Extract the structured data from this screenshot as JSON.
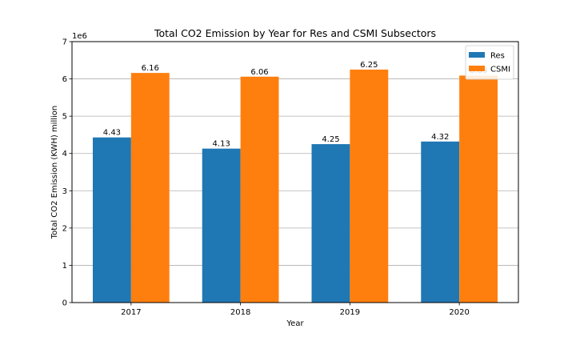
{
  "chart_data": {
    "type": "bar",
    "title": "Total CO2 Emission by Year for Res and CSMI Subsectors",
    "xlabel": "Year",
    "ylabel": "Total CO2 Emission (KWH) million",
    "y_offset_label": "1e6",
    "categories": [
      "2017",
      "2018",
      "2019",
      "2020"
    ],
    "ylim": [
      0,
      7
    ],
    "yticks": [
      0,
      1,
      2,
      3,
      4,
      5,
      6,
      7
    ],
    "grid": "horizontal",
    "legend_position": "top-right",
    "series": [
      {
        "name": "Res",
        "color": "#1f77b4",
        "values": [
          4.43,
          4.13,
          4.25,
          4.32
        ],
        "labels": [
          "4.43",
          "4.13",
          "4.25",
          "4.32"
        ]
      },
      {
        "name": "CSMI",
        "color": "#ff7f0e",
        "values": [
          6.16,
          6.06,
          6.25,
          6.09
        ],
        "labels": [
          "6.16",
          "6.06",
          "6.25",
          "6.09"
        ]
      }
    ]
  }
}
